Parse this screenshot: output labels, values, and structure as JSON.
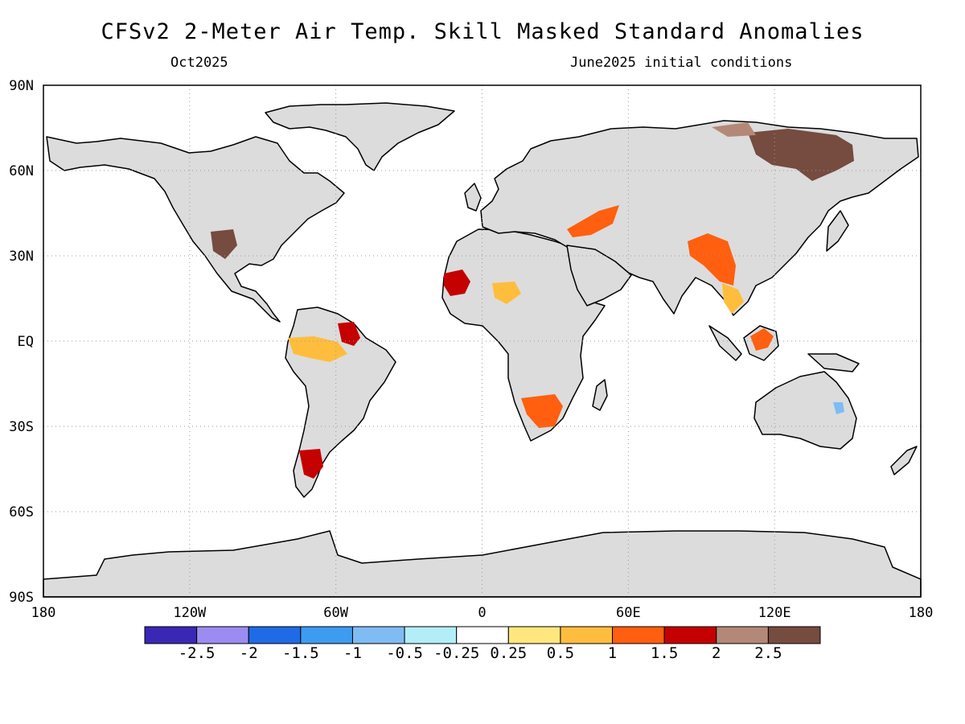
{
  "title": "CFSv2 2-Meter Air Temp. Skill Masked Standard Anomalies",
  "subtitle_left": "Oct2025",
  "subtitle_right": "June2025 initial conditions",
  "axes": {
    "lat_labels": [
      "90N",
      "60N",
      "30N",
      "EQ",
      "30S",
      "60S",
      "90S"
    ],
    "lon_labels": [
      "180",
      "120W",
      "60W",
      "0",
      "60E",
      "120E",
      "180"
    ]
  },
  "colors": {
    "land": "#dcdcdc",
    "ocean": "#ffffff",
    "coast": "#000000",
    "grid": "#9a9a9a"
  },
  "colorbar": {
    "colors": [
      "#3a28b5",
      "#9c8cf2",
      "#1f6be6",
      "#3d9cf0",
      "#7fbcf4",
      "#b3eef8",
      "#ffffff",
      "#ffe77e",
      "#ffbd3d",
      "#ff5f0e",
      "#c40000",
      "#b48878",
      "#764b40"
    ],
    "labels": [
      "-2.5",
      "-2",
      "-1.5",
      "-1",
      "-0.5",
      "-0.25",
      "0.25",
      "0.5",
      "1",
      "1.5",
      "2",
      "2.5"
    ]
  },
  "anomaly_regions": [
    {
      "region": "Eastern Siberia",
      "color": "#764b40"
    },
    {
      "region": "Northeast Siberia margin",
      "color": "#b48878"
    },
    {
      "region": "Southeast China / Tibet",
      "color": "#ff5f0e"
    },
    {
      "region": "Indochina",
      "color": "#ffbd3d"
    },
    {
      "region": "Borneo",
      "color": "#ff5f0e"
    },
    {
      "region": "Western Sahara",
      "color": "#c40000"
    },
    {
      "region": "Sahel",
      "color": "#ffbd3d"
    },
    {
      "region": "Southern Africa",
      "color": "#ff5f0e"
    },
    {
      "region": "Amazon",
      "color": "#ffbd3d"
    },
    {
      "region": "Guiana Highlands",
      "color": "#c40000"
    },
    {
      "region": "Argentina",
      "color": "#c40000"
    },
    {
      "region": "Southwest USA",
      "color": "#764b40"
    },
    {
      "region": "Caspian region",
      "color": "#ff5f0e"
    },
    {
      "region": "Eastern Australia",
      "color": "#7fbcf4"
    }
  ]
}
